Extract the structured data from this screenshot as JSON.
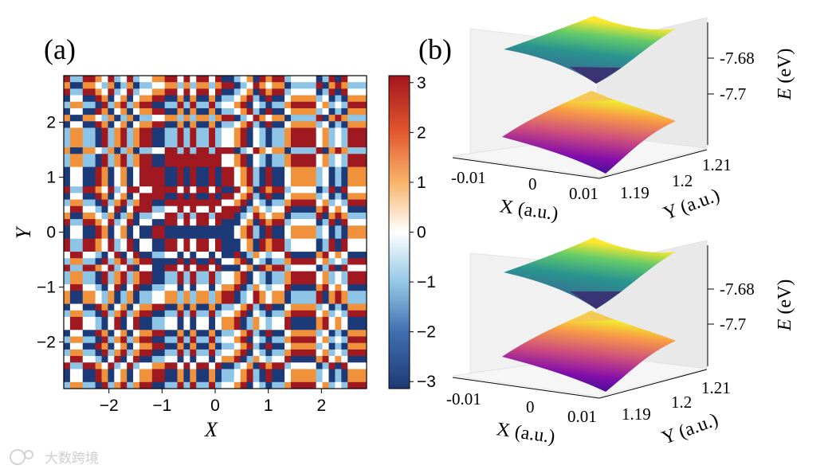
{
  "figure": {
    "panel_a_label": "(a)",
    "panel_b_label": "(b)",
    "watermark": "大数跨境"
  },
  "chart_data": [
    {
      "type": "heatmap",
      "panel": "(a)",
      "xlabel": "X",
      "ylabel": "Y",
      "xlim": [
        -2.85,
        2.85
      ],
      "ylim": [
        -2.85,
        2.85
      ],
      "x_ticks": [
        "−2",
        "−1",
        "0",
        "1",
        "2"
      ],
      "x_tick_values": [
        -2,
        -1,
        0,
        1,
        2
      ],
      "y_ticks": [
        "2",
        "1",
        "0",
        "−1",
        "−2"
      ],
      "y_tick_values": [
        2,
        1,
        0,
        -1,
        -2
      ],
      "grid_size": 48,
      "colorbar": {
        "range": [
          -3.14,
          3.14
        ],
        "ticks": [
          "3",
          "2",
          "1",
          "0",
          "−1",
          "−2",
          "−3"
        ],
        "tick_values": [
          3,
          2,
          1,
          0,
          -1,
          -2,
          -3
        ],
        "colormap": [
          "#1f3a73",
          "#4a7fbf",
          "#93c7e6",
          "#ffffff",
          "#f5a25a",
          "#e4572e",
          "#a3151c"
        ]
      },
      "palette": {
        "dark_blue": "#1c3a78",
        "light_blue": "#8ec5e7",
        "white": "#ffffff",
        "orange": "#f0923b",
        "dark_red": "#a01820"
      }
    },
    {
      "type": "surface3d",
      "panel": "(b) top",
      "xlabel": "X (a.u.)",
      "ylabel": "Y (a.u.)",
      "zlabel": "E (eV)",
      "z_label_italic": "E",
      "z_label_unit": "(eV)",
      "x_ticks": [
        "-0.01",
        "0",
        "0.01"
      ],
      "y_ticks": [
        "1.19",
        "1.2",
        "1.21"
      ],
      "z_ticks": [
        "-7.68",
        "-7.7"
      ],
      "bands": [
        "upper (viridis)",
        "lower (plasma)"
      ]
    },
    {
      "type": "surface3d",
      "panel": "(b) bottom",
      "xlabel": "X (a.u.)",
      "ylabel": "Y (a.u.)",
      "zlabel": "E (eV)",
      "z_label_italic": "E",
      "z_label_unit": "(eV)",
      "x_ticks": [
        "-0.01",
        "0",
        "0.01"
      ],
      "y_ticks": [
        "1.19",
        "1.2",
        "1.21"
      ],
      "z_ticks": [
        "-7.68",
        "-7.7"
      ],
      "bands": [
        "upper (viridis)",
        "lower (plasma)"
      ]
    }
  ]
}
